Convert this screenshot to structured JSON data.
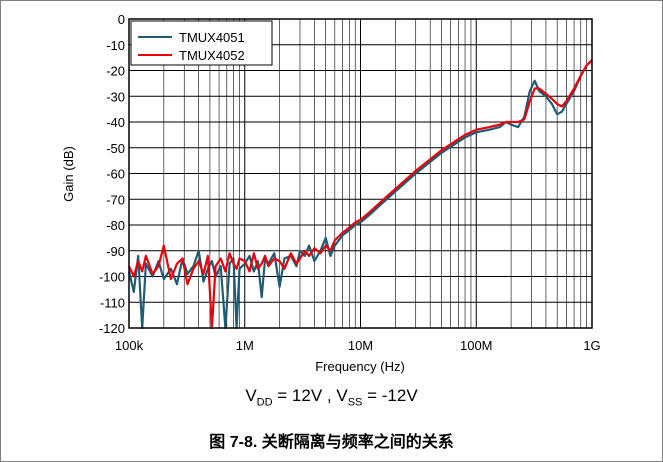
{
  "chart_data": {
    "type": "line",
    "title": "",
    "xlabel": "Frequency (Hz)",
    "ylabel": "Gain (dB)",
    "xscale": "log",
    "xlim": [
      100000,
      1000000000
    ],
    "ylim": [
      -120,
      0
    ],
    "grid": true,
    "legend_position": "top-left",
    "x_tick_labels": [
      "100k",
      "1M",
      "10M",
      "100M",
      "1G"
    ],
    "x_tick_values": [
      100000,
      1000000,
      10000000,
      100000000,
      1000000000
    ],
    "y_tick_labels": [
      "0",
      "-10",
      "-20",
      "-30",
      "-40",
      "-50",
      "-60",
      "-70",
      "-80",
      "-90",
      "-100",
      "-110",
      "-120"
    ],
    "y_tick_values": [
      0,
      -10,
      -20,
      -30,
      -40,
      -50,
      -60,
      -70,
      -80,
      -90,
      -100,
      -110,
      -120
    ],
    "series": [
      {
        "name": "TMUX4051",
        "color": "#1f5c73",
        "x": [
          100000,
          110000,
          120000,
          130000,
          140000,
          160000,
          180000,
          200000,
          230000,
          260000,
          290000,
          320000,
          360000,
          400000,
          440000,
          480000,
          520000,
          560000,
          620000,
          680000,
          740000,
          800000,
          850000,
          900000,
          1000000,
          1100000,
          1200000,
          1300000,
          1400000,
          1500000,
          1600000,
          1800000,
          2000000,
          2200000,
          2500000,
          2800000,
          3000000,
          3300000,
          3600000,
          4000000,
          4500000,
          5000000,
          5500000,
          6000000,
          7000000,
          8000000,
          9000000,
          10000000,
          12000000,
          15000000,
          20000000,
          30000000,
          50000000,
          80000000,
          100000000,
          130000000,
          160000000,
          180000000,
          200000000,
          230000000,
          260000000,
          290000000,
          320000000,
          350000000,
          400000000,
          450000000,
          500000000,
          550000000,
          600000000,
          700000000,
          800000000,
          900000000,
          1000000000
        ],
        "y": [
          -98,
          -106,
          -92,
          -120,
          -95,
          -100,
          -94,
          -101,
          -97,
          -103,
          -93,
          -99,
          -96,
          -90,
          -102,
          -97,
          -94,
          -100,
          -96,
          -120,
          -95,
          -93,
          -120,
          -97,
          -95,
          -92,
          -98,
          -94,
          -108,
          -93,
          -95,
          -91,
          -104,
          -93,
          -92,
          -96,
          -90,
          -92,
          -88,
          -94,
          -90,
          -85,
          -92,
          -88,
          -84,
          -82,
          -80,
          -79,
          -76,
          -72,
          -67,
          -60,
          -52,
          -46,
          -44,
          -43,
          -42,
          -40,
          -41,
          -42,
          -38,
          -28,
          -24,
          -28,
          -30,
          -33,
          -37,
          -36,
          -33,
          -28,
          -22,
          -18,
          -16
        ]
      },
      {
        "name": "TMUX4052",
        "color": "#e8000b",
        "x": [
          100000,
          110000,
          120000,
          130000,
          140000,
          160000,
          180000,
          200000,
          230000,
          260000,
          290000,
          320000,
          360000,
          400000,
          440000,
          480000,
          520000,
          560000,
          620000,
          680000,
          740000,
          800000,
          850000,
          900000,
          1000000,
          1100000,
          1200000,
          1300000,
          1400000,
          1500000,
          1600000,
          1800000,
          2000000,
          2200000,
          2500000,
          2800000,
          3000000,
          3300000,
          3600000,
          4000000,
          4500000,
          5000000,
          5500000,
          6000000,
          7000000,
          8000000,
          9000000,
          10000000,
          12000000,
          15000000,
          20000000,
          30000000,
          50000000,
          80000000,
          100000000,
          130000000,
          160000000,
          180000000,
          200000000,
          230000000,
          260000000,
          290000000,
          320000000,
          350000000,
          400000000,
          450000000,
          500000000,
          550000000,
          600000000,
          700000000,
          800000000,
          900000000,
          1000000000
        ],
        "y": [
          -96,
          -100,
          -94,
          -98,
          -92,
          -99,
          -96,
          -88,
          -101,
          -95,
          -93,
          -103,
          -97,
          -94,
          -99,
          -92,
          -120,
          -96,
          -93,
          -98,
          -91,
          -95,
          -97,
          -93,
          -94,
          -98,
          -91,
          -97,
          -95,
          -92,
          -96,
          -93,
          -94,
          -97,
          -91,
          -95,
          -93,
          -90,
          -92,
          -89,
          -91,
          -88,
          -90,
          -86,
          -83,
          -81,
          -79,
          -78,
          -75,
          -71,
          -66,
          -59,
          -51,
          -45,
          -43,
          -42,
          -41,
          -40,
          -40,
          -40,
          -39,
          -32,
          -27,
          -27,
          -29,
          -31,
          -33,
          -34,
          -32,
          -27,
          -22,
          -18,
          -16
        ]
      }
    ]
  },
  "annotation": {
    "vdd": "V",
    "vdd_sub": "DD",
    "vdd_value": " = 12V , V",
    "vss_sub": "SS",
    "vss_value": " = -12V"
  },
  "caption": "图 7-8. 关断隔离与频率之间的关系"
}
